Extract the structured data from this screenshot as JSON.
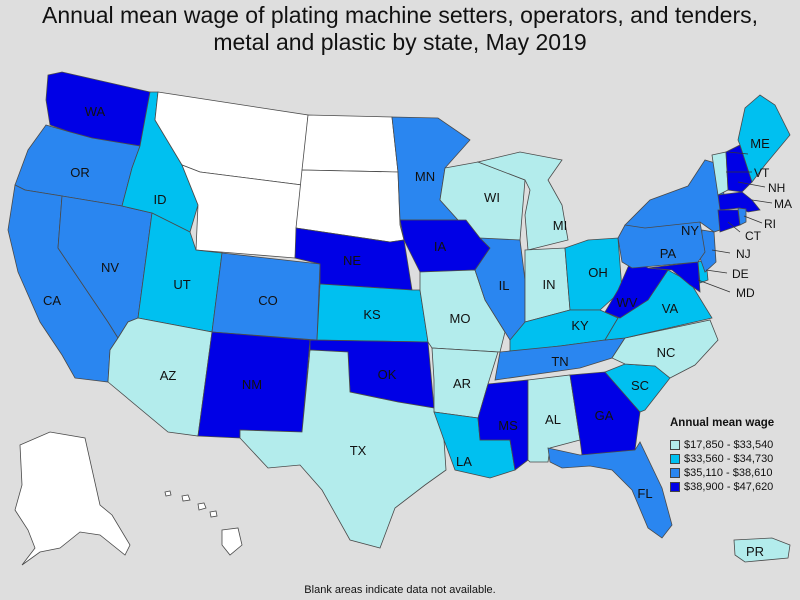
{
  "title": {
    "line1": "Annual mean wage of plating machine setters, operators, and tenders,",
    "line2": "metal and plastic by state, May 2019"
  },
  "legend": {
    "title": "Annual mean wage",
    "items": [
      {
        "label": "$17,850 - $33,540",
        "color": "#b3ecec"
      },
      {
        "label": "$33,560 - $34,730",
        "color": "#00c0f0"
      },
      {
        "label": "$35,110 - $38,610",
        "color": "#2a86f0"
      },
      {
        "label": "$38,900 - $47,620",
        "color": "#0000e6"
      }
    ],
    "no_data_color": "#ffffff"
  },
  "footnote": "Blank areas indicate data not available.",
  "states": {
    "WA": "$38,900 - $47,620",
    "OR": "$35,110 - $38,610",
    "CA": "$35,110 - $38,610",
    "NV": "$35,110 - $38,610",
    "ID": "$33,560 - $34,730",
    "UT": "$33,560 - $34,730",
    "AZ": "$17,850 - $33,540",
    "CO": "$35,110 - $38,610",
    "NM": "$38,900 - $47,620",
    "NE": "$38,900 - $47,620",
    "KS": "$33,560 - $34,730",
    "OK": "$38,900 - $47,620",
    "TX": "$17,850 - $33,540",
    "MN": "$35,110 - $38,610",
    "IA": "$38,900 - $47,620",
    "MO": "$17,850 - $33,540",
    "AR": "$17,850 - $33,540",
    "LA": "$33,560 - $34,730",
    "WI": "$17,850 - $33,540",
    "IL": "$35,110 - $38,610",
    "MI": "$17,850 - $33,540",
    "IN": "$17,850 - $33,540",
    "OH": "$33,560 - $34,730",
    "KY": "$33,560 - $34,730",
    "TN": "$35,110 - $38,610",
    "MS": "$38,900 - $47,620",
    "AL": "$17,850 - $33,540",
    "GA": "$38,900 - $47,620",
    "FL": "$35,110 - $38,610",
    "SC": "$33,560 - $34,730",
    "NC": "$17,850 - $33,540",
    "VA": "$33,560 - $34,730",
    "WV": "$38,900 - $47,620",
    "PA": "$35,110 - $38,610",
    "NY": "$35,110 - $38,610",
    "NJ": "$35,110 - $38,610",
    "DE": "$33,560 - $34,730",
    "MD": "$38,900 - $47,620",
    "CT": "$38,900 - $47,620",
    "RI": "$35,110 - $38,610",
    "MA": "$38,900 - $47,620",
    "VT": "$17,850 - $33,540",
    "NH": "$38,900 - $47,620",
    "ME": "$33,560 - $34,730",
    "PR": "$17,850 - $33,540",
    "MT": "",
    "WY": "",
    "ND": "",
    "SD": "",
    "AK": "",
    "HI": ""
  }
}
